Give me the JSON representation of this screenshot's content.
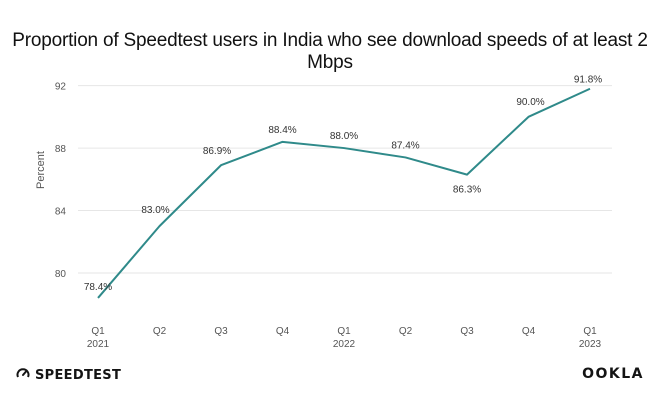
{
  "header": {
    "title": "Proportion of Speedtest users in India who see download speeds of at least 2 Mbps"
  },
  "footer": {
    "left_brand": "SPEEDTEST",
    "left_icon": "speedtest-gauge-icon",
    "right_brand": "OOKLA"
  },
  "colors": {
    "line": "#2f8a8a",
    "grid": "#e6e6e6",
    "text": "#333333",
    "axis_text": "#555555"
  },
  "chart_data": {
    "type": "line",
    "title": "Proportion of Speedtest users in India who see download speeds of at least 2 Mbps",
    "xlabel": "",
    "ylabel": "Percent",
    "categories": [
      "Q1",
      "Q2",
      "Q3",
      "Q4",
      "Q1",
      "Q2",
      "Q3",
      "Q4",
      "Q1"
    ],
    "year_labels": [
      "2021",
      "",
      "",
      "",
      "2022",
      "",
      "",
      "",
      "2023"
    ],
    "series": [
      {
        "values": [
          78.4,
          83.0,
          86.9,
          88.4,
          88.0,
          87.4,
          86.3,
          90.0,
          91.8
        ],
        "data_labels": [
          "78.4%",
          "83.0%",
          "86.9%",
          "88.4%",
          "88.0%",
          "87.4%",
          "86.3%",
          "90.0%",
          "91.8%"
        ]
      }
    ],
    "yticks": [
      80,
      84,
      88,
      92
    ],
    "ylim": [
      77.5,
      93
    ],
    "grid": "horizontal"
  }
}
